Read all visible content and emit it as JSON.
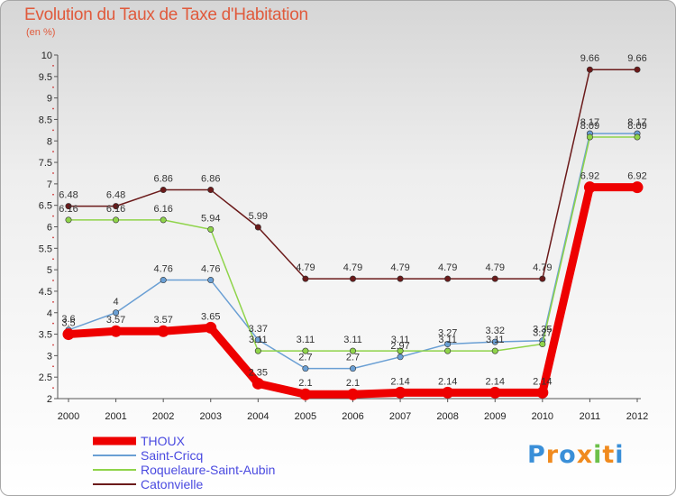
{
  "chart_data": {
    "type": "line",
    "title": "Evolution du Taux de Taxe d'Habitation",
    "subtitle": "(en %)",
    "x": [
      "2000",
      "2001",
      "2002",
      "2003",
      "2004",
      "2005",
      "2006",
      "2007",
      "2008",
      "2009",
      "2010",
      "2011",
      "2012"
    ],
    "ylim": [
      2,
      10
    ],
    "yticks": [
      "2",
      "2.5",
      "3",
      "3.5",
      "4",
      "4.5",
      "5",
      "5.5",
      "6",
      "6.5",
      "7",
      "7.5",
      "8",
      "8.5",
      "9",
      "9.5",
      "10"
    ],
    "grid": false,
    "legend_placement": "bottom-left",
    "series": [
      {
        "name": "Catonvielle",
        "color": "#6b1a1a",
        "values": [
          6.48,
          6.48,
          6.86,
          6.86,
          5.99,
          4.79,
          4.79,
          4.79,
          4.79,
          4.79,
          4.79,
          9.66,
          9.66
        ],
        "labels": [
          "6.48",
          "6.48",
          "6.86",
          "6.86",
          "5.99",
          "4.79",
          "4.79",
          "4.79",
          "4.79",
          "4.79",
          "4.79",
          "9.66",
          "9.66"
        ]
      },
      {
        "name": "Saint-Cricq",
        "color": "#6a9fd4",
        "values": [
          3.6,
          4,
          4.76,
          4.76,
          3.37,
          2.7,
          2.7,
          2.97,
          3.27,
          3.32,
          3.35,
          8.17,
          8.17
        ],
        "labels": [
          "3.6",
          "4",
          "4.76",
          "4.76",
          "3.37",
          "2.7",
          "2.7",
          "2.97",
          "3.27",
          "3.32",
          "3.35",
          "8.17",
          "8.17"
        ]
      },
      {
        "name": "Roquelaure-Saint-Aubin",
        "color": "#8fd44a",
        "values": [
          6.16,
          6.16,
          6.16,
          5.94,
          3.11,
          3.11,
          3.11,
          3.11,
          3.11,
          3.11,
          3.27,
          8.09,
          8.09
        ],
        "labels": [
          "6.16",
          "6.16",
          "6.16",
          "5.94",
          "3.11",
          "3.11",
          "3.11",
          "3.11",
          "3.11",
          "3.11",
          "3.27",
          "8.09",
          "8.09"
        ]
      },
      {
        "name": "THOUX",
        "color": "#ee0000",
        "values": [
          3.5,
          3.57,
          3.57,
          3.65,
          2.35,
          2.1,
          2.1,
          2.14,
          2.14,
          2.14,
          2.14,
          6.92,
          6.92
        ],
        "labels": [
          "3.5",
          "3.57",
          "3.57",
          "3.65",
          "2.35",
          "2.1",
          "2.1",
          "2.14",
          "2.14",
          "2.14",
          "2.14",
          "6.92",
          "6.92"
        ]
      }
    ],
    "legend": [
      "THOUX",
      "Saint-Cricq",
      "Roquelaure-Saint-Aubin",
      "Catonvielle"
    ]
  },
  "logo": {
    "text": "Proxiti",
    "letters": [
      "P",
      "r",
      "o",
      "x",
      "i",
      "t",
      "i"
    ],
    "colors": [
      "#3a8fd8",
      "#f08a1e",
      "#3a8fd8",
      "#f08a1e",
      "#6cc04a",
      "#f08a1e",
      "#3a8fd8"
    ]
  }
}
